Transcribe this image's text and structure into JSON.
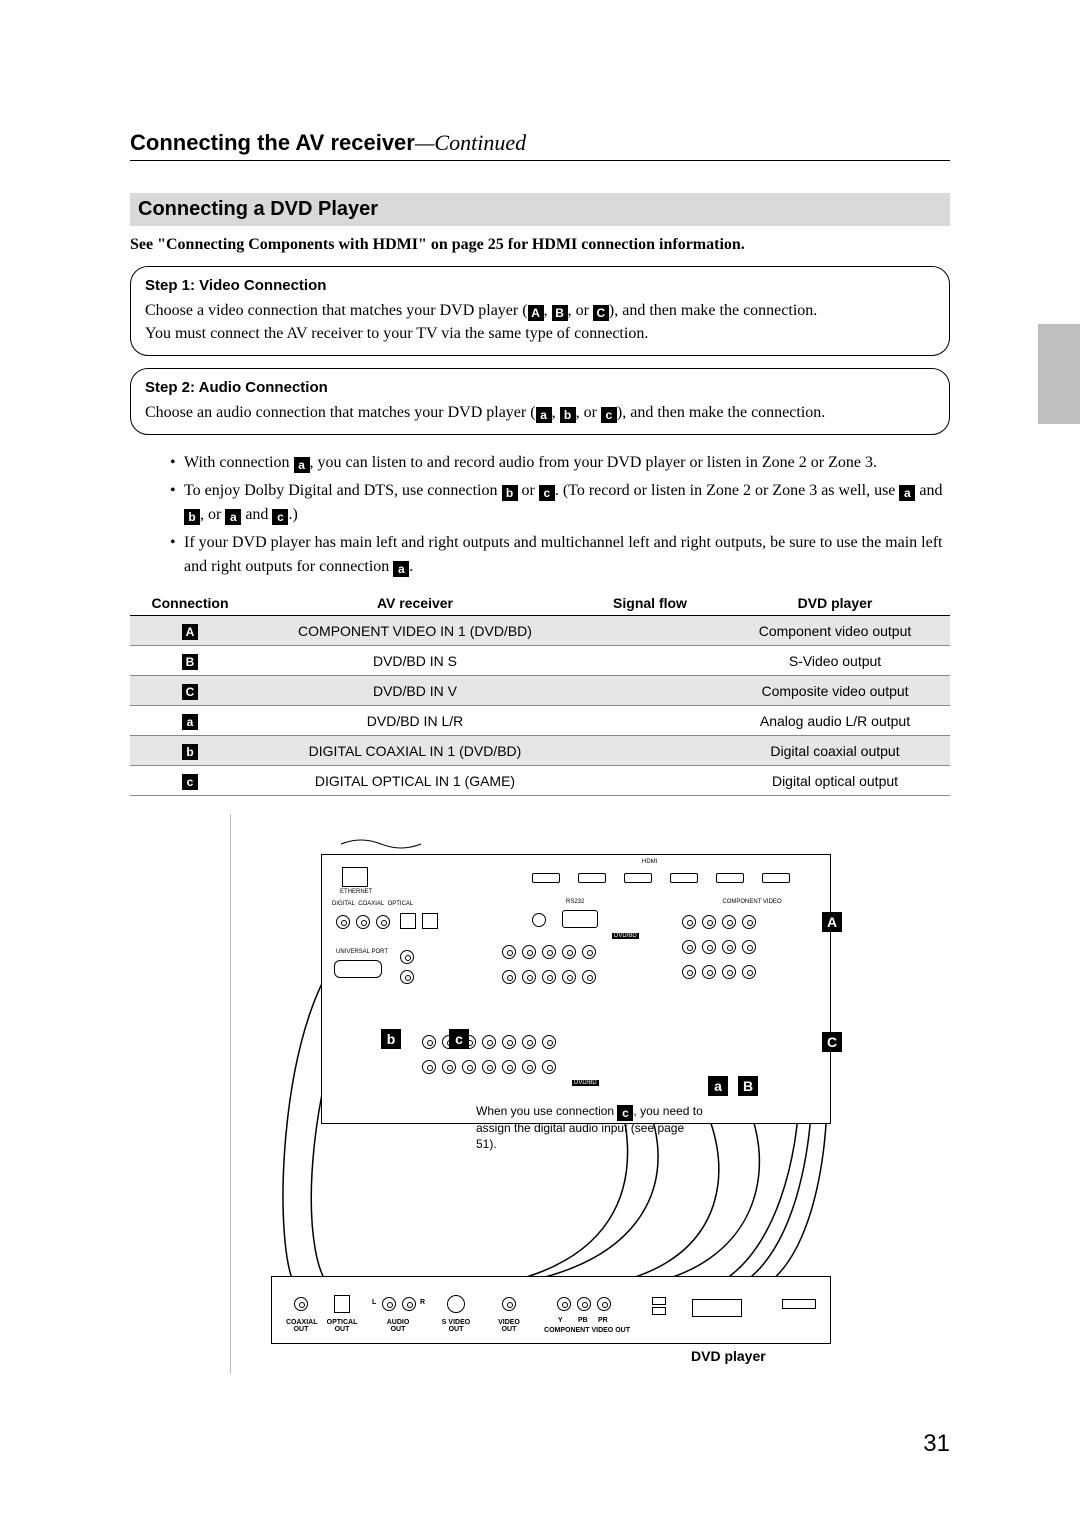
{
  "page": {
    "title_main": "Connecting the AV receiver",
    "title_cont": "—Continued",
    "page_number": "31"
  },
  "section": {
    "heading": "Connecting a DVD Player",
    "hdmi_ref": "See \"Connecting Components with HDMI\" on page 25 for HDMI connection information."
  },
  "step1": {
    "title": "Step 1: Video Connection",
    "line1a": "Choose a video connection that matches your DVD player (",
    "A": "A",
    "sep1": ", ",
    "B": "B",
    "sep2": ", or ",
    "C": "C",
    "line1b": "), and then make the connection.",
    "line2": "You must connect the AV receiver to your TV via the same type of connection."
  },
  "step2": {
    "title": "Step 2: Audio Connection",
    "line1a": "Choose an audio connection that matches your DVD player (",
    "a": "a",
    "sep1": ", ",
    "b": "b",
    "sep2": ", or ",
    "c": "c",
    "line1b": "), and then make the connection."
  },
  "bullets": {
    "b1a": "With connection ",
    "b1tag": "a",
    "b1b": ", you can listen to and record audio from your DVD player or listen in Zone 2 or Zone 3.",
    "b2a": "To enjoy Dolby Digital and DTS, use connection ",
    "b2t1": "b",
    "b2mid": " or ",
    "b2t2": "c",
    "b2b": ". (To record or listen in Zone 2 or Zone 3 as well, use ",
    "b2t3": "a",
    "b2and1": " and ",
    "b2t4": "b",
    "b2or": ", or ",
    "b2t5": "a",
    "b2and2": " and ",
    "b2t6": "c",
    "b2end": ".)",
    "b3a": "If your DVD player has main left and right outputs and multichannel left and right outputs, be sure to use the main left and right outputs for connection ",
    "b3tag": "a",
    "b3end": "."
  },
  "table": {
    "headers": {
      "c1": "Connection",
      "c2": "AV receiver",
      "c3": "Signal flow",
      "c4": "DVD player"
    },
    "rows": [
      {
        "tag": "A",
        "rec": "COMPONENT VIDEO IN 1 (DVD/BD)",
        "dvd": "Component video output",
        "shade": true
      },
      {
        "tag": "B",
        "rec": "DVD/BD IN S",
        "dvd": "S-Video output",
        "shade": false
      },
      {
        "tag": "C",
        "rec": "DVD/BD IN V",
        "dvd": "Composite video output",
        "shade": true
      },
      {
        "tag": "a",
        "rec": "DVD/BD IN L/R",
        "dvd": "Analog audio L/R output",
        "shade": false
      },
      {
        "tag": "b",
        "rec": "DIGITAL COAXIAL IN 1 (DVD/BD)",
        "dvd": "Digital coaxial output",
        "shade": true
      },
      {
        "tag": "c",
        "rec": "DIGITAL OPTICAL IN 1 (GAME)",
        "dvd": "Digital optical output",
        "shade": false
      }
    ]
  },
  "diagram": {
    "note_a": "When you use connection ",
    "note_tag": "c",
    "note_b": ", you need to assign the digital audio input (see page 51).",
    "dvd_label": "DVD player",
    "overlay": {
      "A": "A",
      "B": "B",
      "C": "C",
      "a": "a",
      "b": "b",
      "c": "c"
    },
    "dvd_outputs": {
      "coax": "COAXIAL\nOUT",
      "opt": "OPTICAL\nOUT",
      "audio": "AUDIO\nOUT",
      "sv": "S VIDEO\nOUT",
      "vid": "VIDEO\nOUT",
      "comp": "COMPONENT VIDEO OUT",
      "y": "Y",
      "pb": "PB",
      "pr": "PR",
      "L": "L",
      "R": "R"
    }
  },
  "colors": {
    "shade_bg": "#e6e6e6",
    "section_bg": "#d9d9d9",
    "edge_tab": "#bfbfbf"
  }
}
